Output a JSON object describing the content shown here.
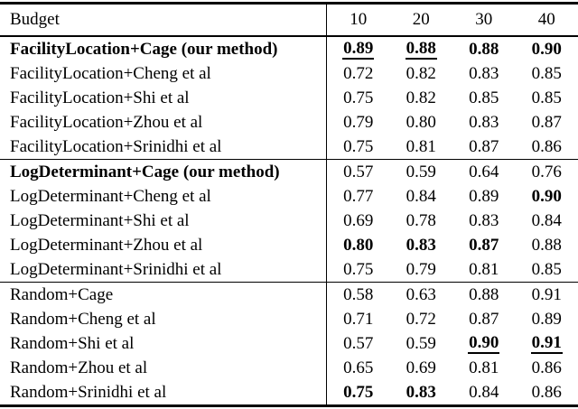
{
  "colors": {
    "background": "#ffffff",
    "text": "#000000",
    "rule": "#000000"
  },
  "table": {
    "header": {
      "label": "Budget",
      "budgets": [
        "10",
        "20",
        "30",
        "40"
      ]
    },
    "sections": [
      {
        "rows": [
          {
            "label": "FacilityLocation+Cage (our method)",
            "label_bold": true,
            "values": [
              {
                "text": "0.89",
                "bold": true,
                "underline": true
              },
              {
                "text": "0.88",
                "bold": true,
                "underline": true
              },
              {
                "text": "0.88",
                "bold": true,
                "underline": false
              },
              {
                "text": "0.90",
                "bold": true,
                "underline": false
              }
            ]
          },
          {
            "label": "FacilityLocation+Cheng et al",
            "label_bold": false,
            "values": [
              {
                "text": "0.72"
              },
              {
                "text": "0.82"
              },
              {
                "text": "0.83"
              },
              {
                "text": "0.85"
              }
            ]
          },
          {
            "label": "FacilityLocation+Shi et al",
            "label_bold": false,
            "values": [
              {
                "text": "0.75"
              },
              {
                "text": "0.82"
              },
              {
                "text": "0.85"
              },
              {
                "text": "0.85"
              }
            ]
          },
          {
            "label": "FacilityLocation+Zhou et al",
            "label_bold": false,
            "values": [
              {
                "text": "0.79"
              },
              {
                "text": "0.80"
              },
              {
                "text": "0.83"
              },
              {
                "text": "0.87"
              }
            ]
          },
          {
            "label": "FacilityLocation+Srinidhi et al",
            "label_bold": false,
            "values": [
              {
                "text": "0.75"
              },
              {
                "text": "0.81"
              },
              {
                "text": "0.87"
              },
              {
                "text": "0.86"
              }
            ]
          }
        ]
      },
      {
        "rows": [
          {
            "label": "LogDeterminant+Cage (our method)",
            "label_bold": true,
            "values": [
              {
                "text": "0.57"
              },
              {
                "text": "0.59"
              },
              {
                "text": "0.64"
              },
              {
                "text": "0.76"
              }
            ]
          },
          {
            "label": "LogDeterminant+Cheng et al",
            "label_bold": false,
            "values": [
              {
                "text": "0.77"
              },
              {
                "text": "0.84"
              },
              {
                "text": "0.89"
              },
              {
                "text": "0.90",
                "bold": true
              }
            ]
          },
          {
            "label": "LogDeterminant+Shi et al",
            "label_bold": false,
            "values": [
              {
                "text": "0.69"
              },
              {
                "text": "0.78"
              },
              {
                "text": "0.83"
              },
              {
                "text": "0.84"
              }
            ]
          },
          {
            "label": "LogDeterminant+Zhou et al",
            "label_bold": false,
            "values": [
              {
                "text": "0.80",
                "bold": true
              },
              {
                "text": "0.83",
                "bold": true
              },
              {
                "text": "0.87",
                "bold": true
              },
              {
                "text": "0.88"
              }
            ]
          },
          {
            "label": "LogDeterminant+Srinidhi et al",
            "label_bold": false,
            "values": [
              {
                "text": "0.75"
              },
              {
                "text": "0.79"
              },
              {
                "text": "0.81"
              },
              {
                "text": "0.85"
              }
            ]
          }
        ]
      },
      {
        "rows": [
          {
            "label": "Random+Cage",
            "label_bold": false,
            "values": [
              {
                "text": "0.58"
              },
              {
                "text": "0.63"
              },
              {
                "text": "0.88"
              },
              {
                "text": "0.91"
              }
            ]
          },
          {
            "label": "Random+Cheng et al",
            "label_bold": false,
            "values": [
              {
                "text": "0.71"
              },
              {
                "text": "0.72"
              },
              {
                "text": "0.87"
              },
              {
                "text": "0.89"
              }
            ]
          },
          {
            "label": "Random+Shi et al",
            "label_bold": false,
            "values": [
              {
                "text": "0.57"
              },
              {
                "text": "0.59"
              },
              {
                "text": "0.90",
                "bold": true,
                "underline": true
              },
              {
                "text": "0.91",
                "bold": true,
                "underline": true
              }
            ]
          },
          {
            "label": "Random+Zhou et al",
            "label_bold": false,
            "values": [
              {
                "text": "0.65"
              },
              {
                "text": "0.69"
              },
              {
                "text": "0.81"
              },
              {
                "text": "0.86"
              }
            ]
          },
          {
            "label": "Random+Srinidhi et al",
            "label_bold": false,
            "values": [
              {
                "text": "0.75",
                "bold": true
              },
              {
                "text": "0.83",
                "bold": true
              },
              {
                "text": "0.84"
              },
              {
                "text": "0.86"
              }
            ]
          }
        ]
      }
    ]
  }
}
